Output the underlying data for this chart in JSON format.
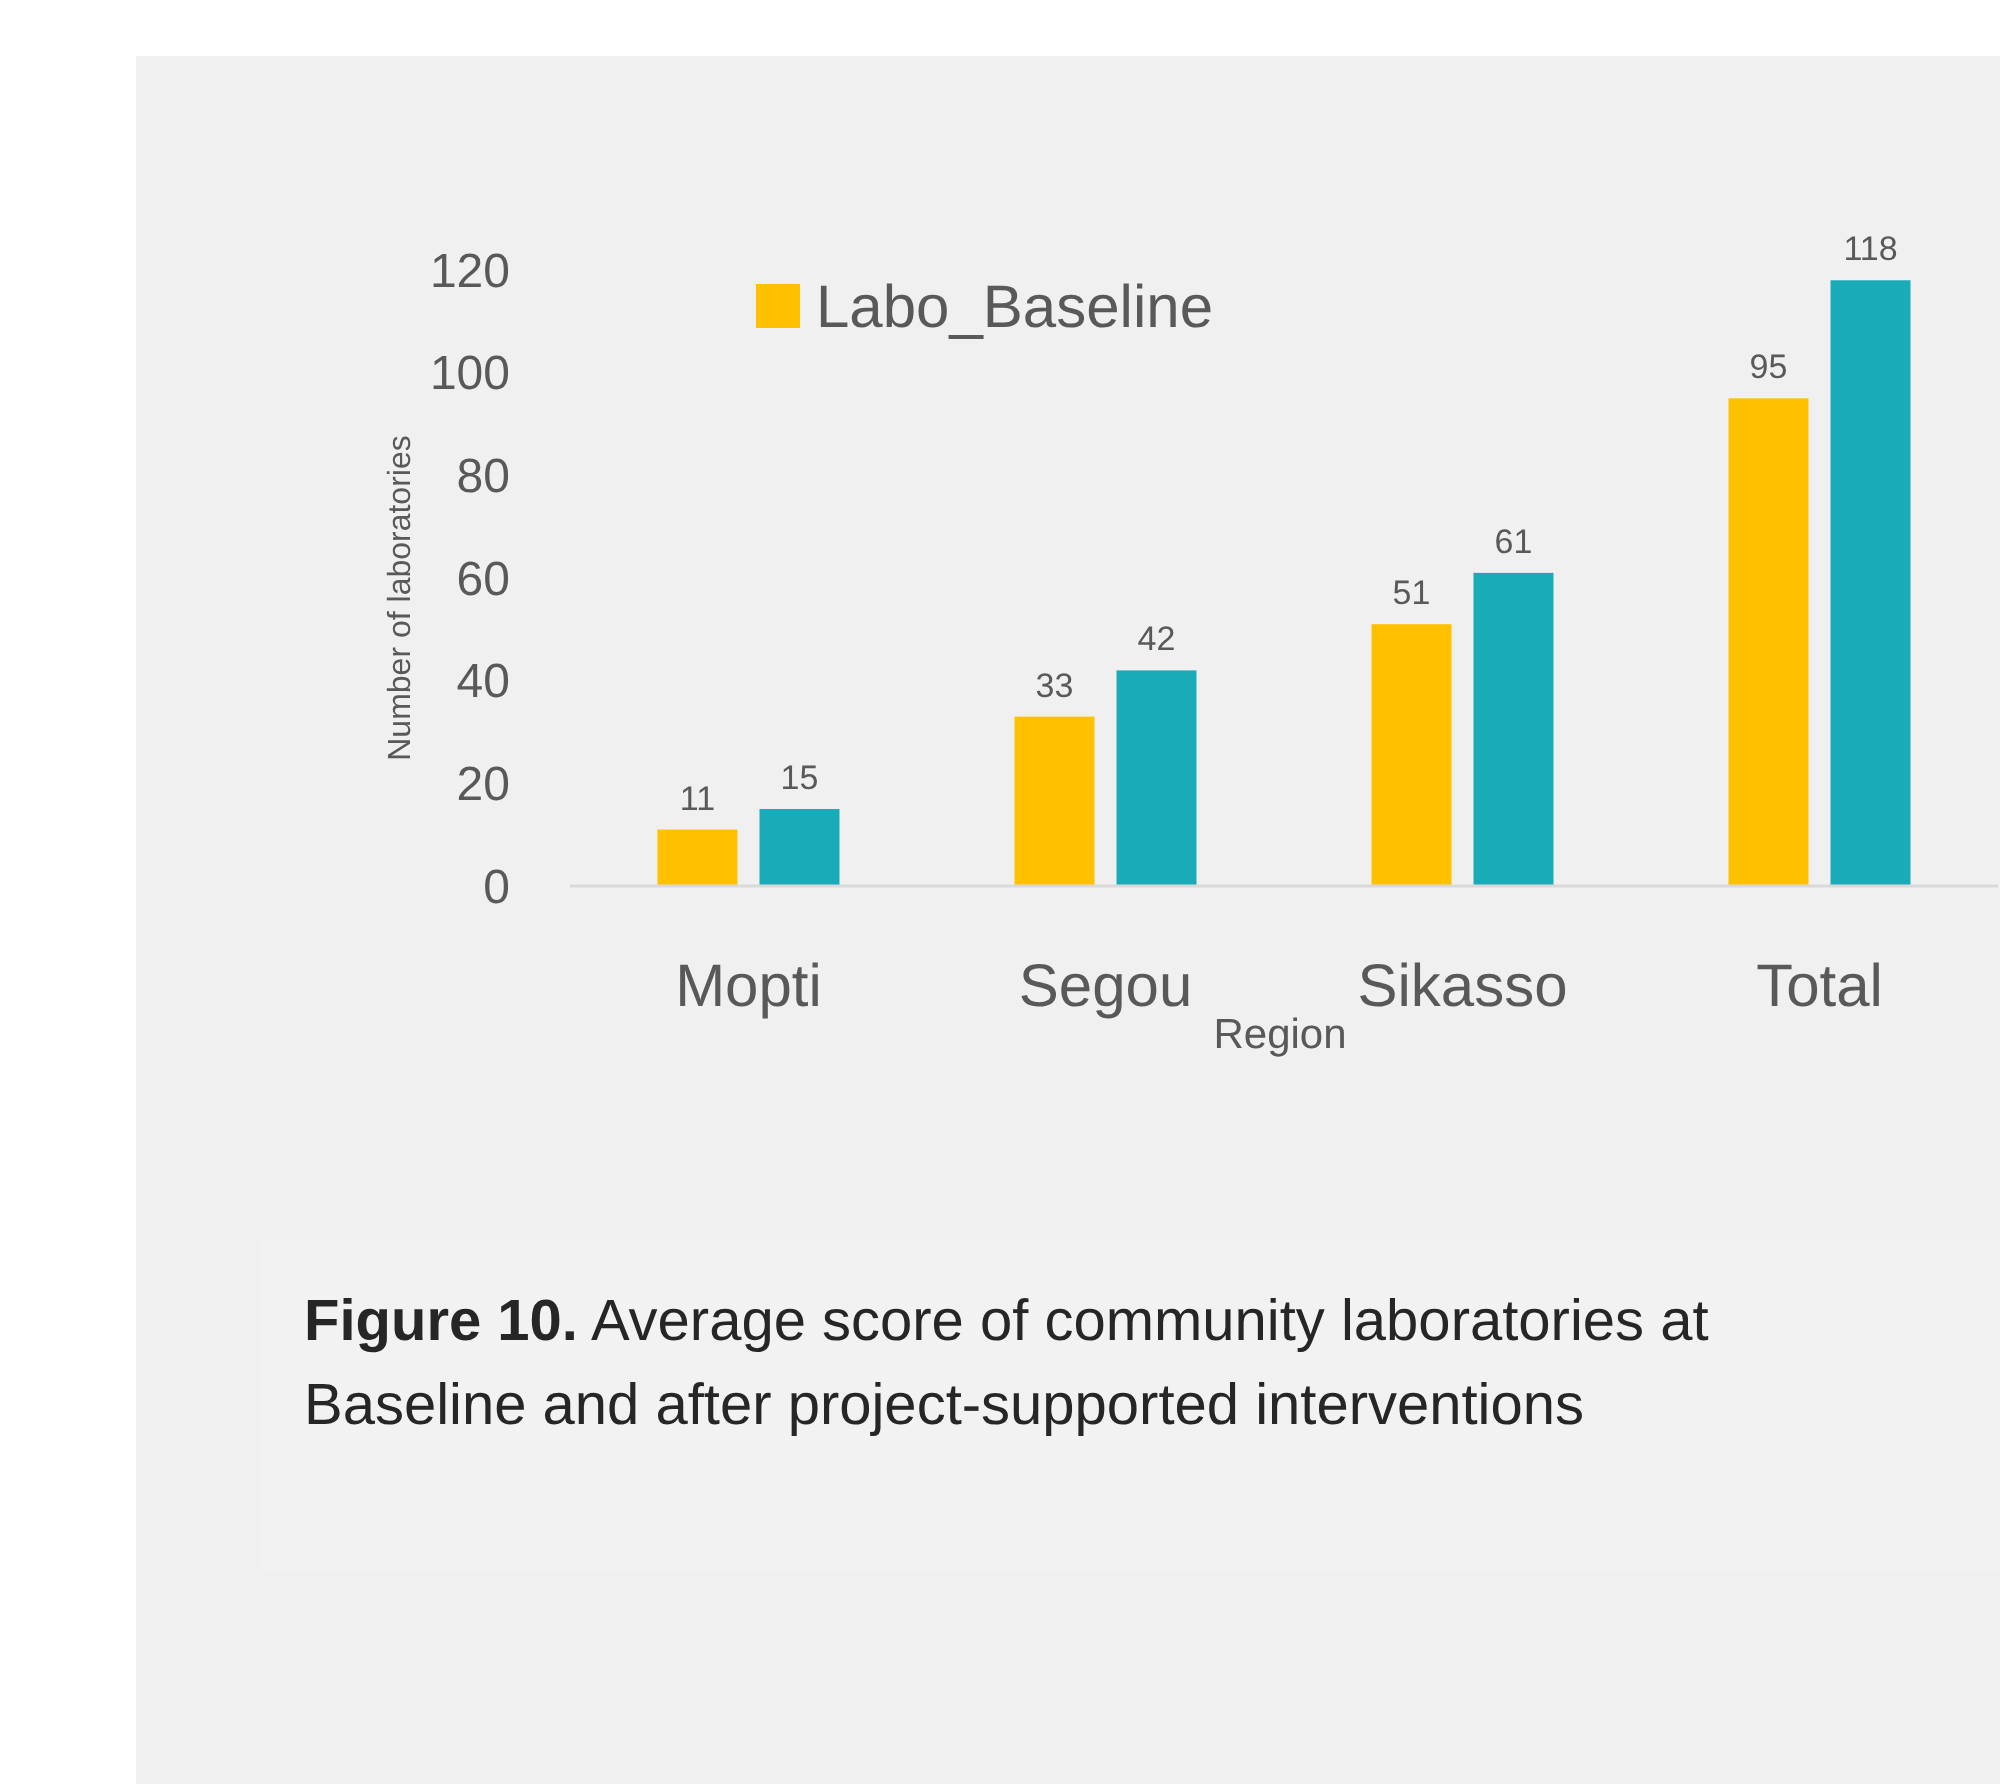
{
  "chart_data": {
    "type": "bar",
    "xlabel": "Region",
    "ylabel": "Number of laboratories",
    "categories": [
      "Mopti",
      "Segou",
      "Sikasso",
      "Total"
    ],
    "series": [
      {
        "name": "Labo_Baseline",
        "color": "#ffc000",
        "values": [
          11,
          33,
          51,
          95
        ]
      },
      {
        "color": "#1aabb8",
        "values": [
          15,
          42,
          61,
          118
        ]
      }
    ],
    "ylim": [
      0,
      120
    ],
    "yticks": [
      0,
      20,
      40,
      60,
      80,
      100,
      120
    ],
    "grid": false,
    "legend": "top left",
    "data_labels": true,
    "annotations": [
      "Figure 10.",
      "Average score of community laboratories at Baseline and after project-supported interventions"
    ]
  }
}
